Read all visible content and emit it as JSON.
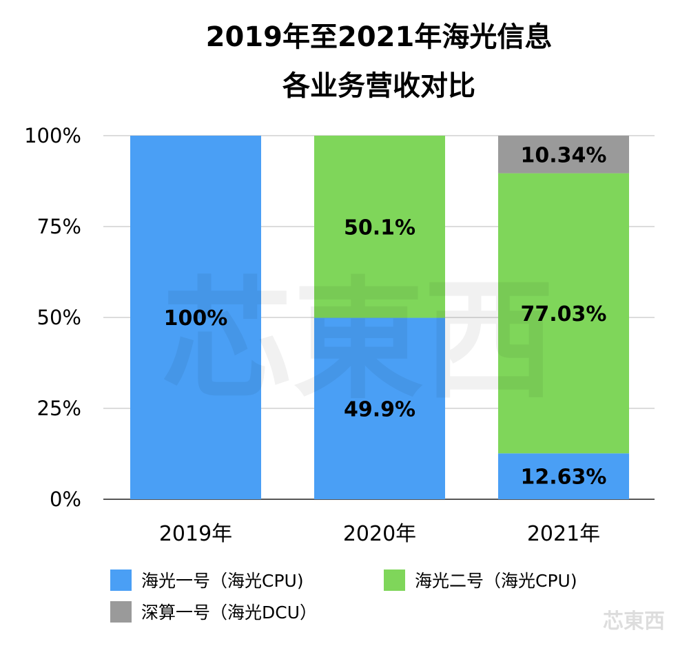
{
  "chart_data": {
    "type": "bar",
    "stacked": true,
    "title_lines": [
      "2019年至2021年海光信息",
      "各业务营收对比"
    ],
    "categories": [
      "2019年",
      "2020年",
      "2021年"
    ],
    "series": [
      {
        "name": "海光一号（海光CPU)",
        "color": "#4a9ff5",
        "values": [
          100,
          49.9,
          12.63
        ],
        "labels": [
          "100%",
          "49.9%",
          "12.63%"
        ]
      },
      {
        "name": "海光二号（海光CPU)",
        "color": "#7fd65a",
        "values": [
          0,
          50.1,
          77.03
        ],
        "labels": [
          "",
          "50.1%",
          "77.03%"
        ]
      },
      {
        "name": "深算一号（海光DCU）",
        "color": "#9a9a9a",
        "values": [
          0,
          0,
          10.34
        ],
        "labels": [
          "",
          "",
          "10.34%"
        ]
      }
    ],
    "ylim": [
      0,
      100
    ],
    "yticks": [
      0,
      25,
      50,
      75,
      100
    ],
    "ytick_labels": [
      "0%",
      "25%",
      "50%",
      "75%",
      "100%"
    ],
    "grid": true,
    "legend_position": "bottom"
  },
  "watermark": {
    "text": "芯東西"
  }
}
